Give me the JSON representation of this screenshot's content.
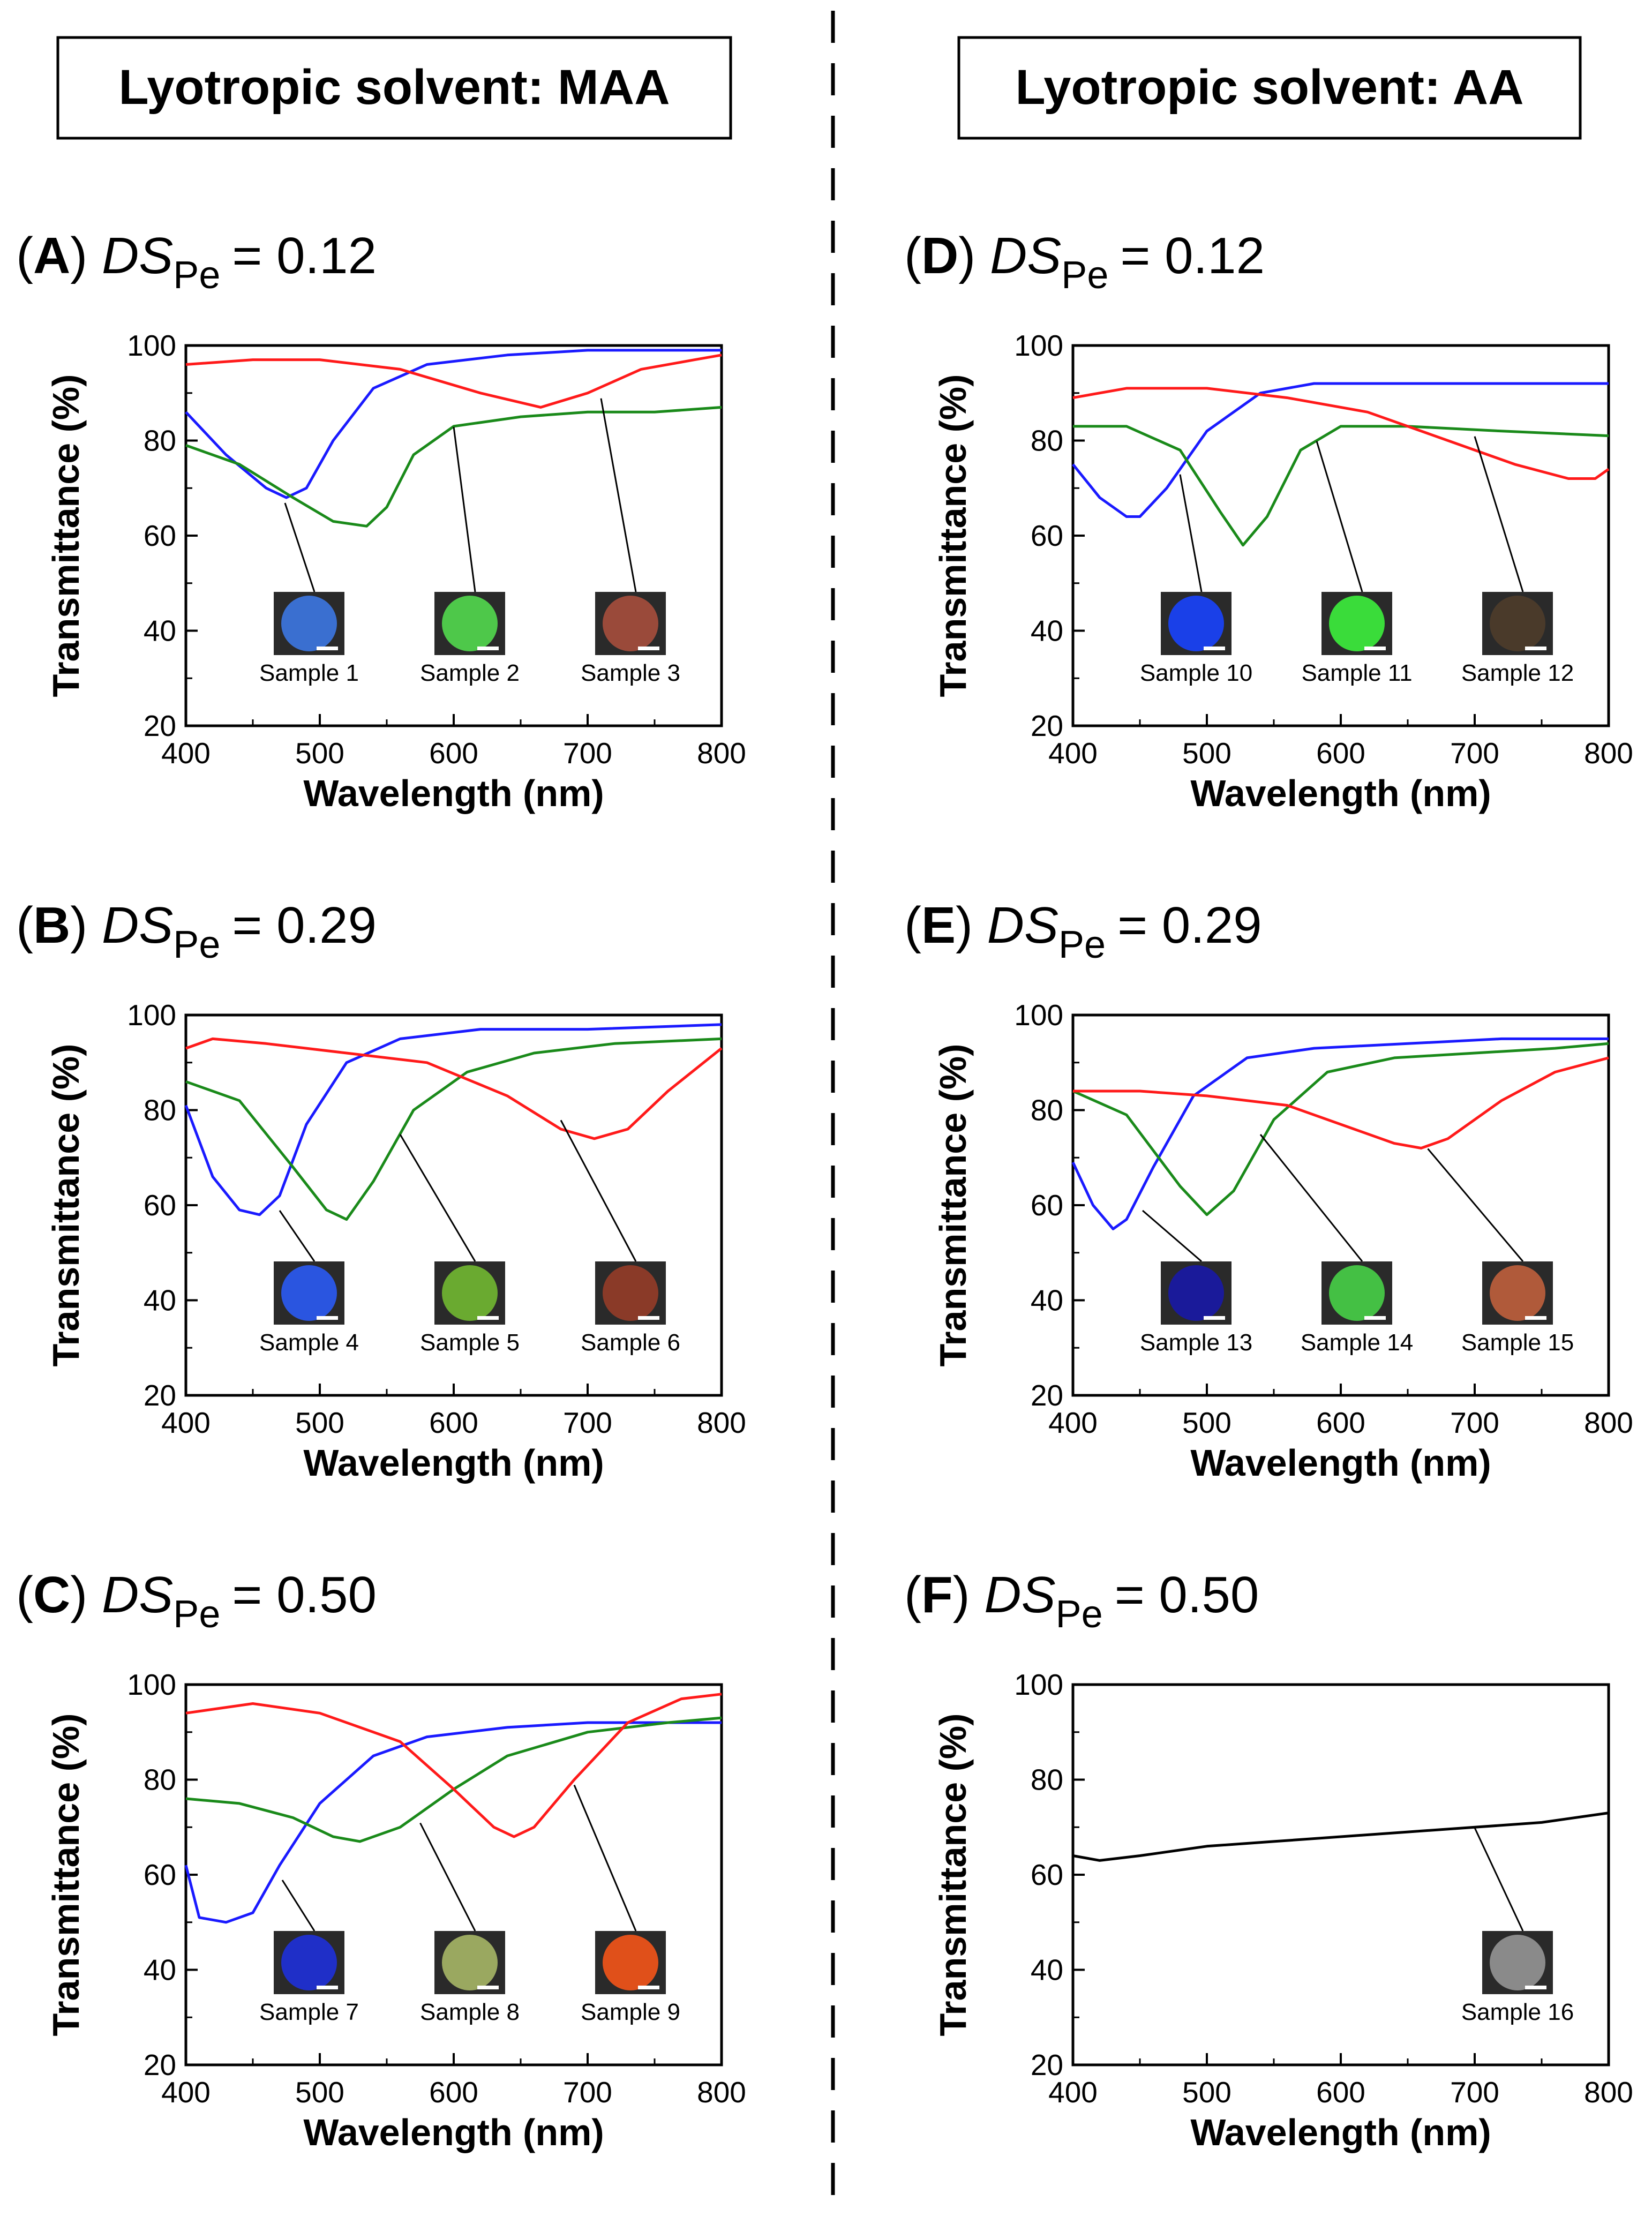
{
  "headers": {
    "left": "Lyotropic solvent: MAA",
    "right": "Lyotropic solvent: AA"
  },
  "colors": {
    "blue": "#1a1aff",
    "green": "#1a8a1a",
    "red": "#ff1a1a",
    "black": "#000000"
  },
  "chart_data": [
    {
      "type": "line",
      "panel": "A",
      "panel_letter": "A",
      "ds_symbol": "DS",
      "ds_subscript": "Pe",
      "ds_value": "= 0.12",
      "xlabel": "Wavelength (nm)",
      "ylabel": "Transmittance (%)",
      "xlim": [
        400,
        800
      ],
      "ylim": [
        20,
        100
      ],
      "xticks": [
        400,
        500,
        600,
        700,
        800
      ],
      "yticks": [
        20,
        40,
        60,
        80,
        100
      ],
      "series": [
        {
          "name": "Sample 1",
          "color": "blue",
          "x": [
            400,
            430,
            460,
            475,
            490,
            510,
            540,
            580,
            640,
            700,
            760,
            800
          ],
          "y": [
            86,
            77,
            70,
            68,
            70,
            80,
            91,
            96,
            98,
            99,
            99,
            99
          ]
        },
        {
          "name": "Sample 2",
          "color": "green",
          "x": [
            400,
            440,
            480,
            510,
            535,
            550,
            570,
            600,
            650,
            700,
            750,
            800
          ],
          "y": [
            79,
            75,
            68,
            63,
            62,
            66,
            77,
            83,
            85,
            86,
            86,
            87
          ]
        },
        {
          "name": "Sample 3",
          "color": "red",
          "x": [
            400,
            450,
            500,
            560,
            620,
            665,
            700,
            740,
            780,
            800
          ],
          "y": [
            96,
            97,
            97,
            95,
            90,
            87,
            90,
            95,
            97,
            98
          ]
        }
      ],
      "insets": [
        {
          "label": "Sample 1",
          "fill": "#3a6fd0",
          "target": [
            474,
            68
          ]
        },
        {
          "label": "Sample 2",
          "fill": "#4ec84a",
          "target": [
            600,
            84
          ]
        },
        {
          "label": "Sample 3",
          "fill": "#9a4a3a",
          "target": [
            710,
            90
          ]
        }
      ]
    },
    {
      "type": "line",
      "panel": "B",
      "panel_letter": "B",
      "ds_symbol": "DS",
      "ds_subscript": "Pe",
      "ds_value": "= 0.29",
      "xlabel": "Wavelength (nm)",
      "ylabel": "Transmittance (%)",
      "xlim": [
        400,
        800
      ],
      "ylim": [
        20,
        100
      ],
      "xticks": [
        400,
        500,
        600,
        700,
        800
      ],
      "yticks": [
        20,
        40,
        60,
        80,
        100
      ],
      "series": [
        {
          "name": "Sample 4",
          "color": "blue",
          "x": [
            400,
            420,
            440,
            455,
            470,
            490,
            520,
            560,
            620,
            700,
            800
          ],
          "y": [
            81,
            66,
            59,
            58,
            62,
            77,
            90,
            95,
            97,
            97,
            98
          ]
        },
        {
          "name": "Sample 5",
          "color": "green",
          "x": [
            400,
            440,
            480,
            505,
            520,
            540,
            570,
            610,
            660,
            720,
            800
          ],
          "y": [
            86,
            82,
            68,
            59,
            57,
            65,
            80,
            88,
            92,
            94,
            95
          ]
        },
        {
          "name": "Sample 6",
          "color": "red",
          "x": [
            400,
            420,
            460,
            520,
            580,
            640,
            680,
            705,
            730,
            760,
            800
          ],
          "y": [
            93,
            95,
            94,
            92,
            90,
            83,
            76,
            74,
            76,
            84,
            93
          ]
        }
      ],
      "insets": [
        {
          "label": "Sample 4",
          "fill": "#2a55e0",
          "target": [
            470,
            60
          ]
        },
        {
          "label": "Sample 5",
          "fill": "#6aaa30",
          "target": [
            560,
            76
          ]
        },
        {
          "label": "Sample 6",
          "fill": "#8a3a28",
          "target": [
            680,
            79
          ]
        }
      ]
    },
    {
      "type": "line",
      "panel": "C",
      "panel_letter": "C",
      "ds_symbol": "DS",
      "ds_subscript": "Pe",
      "ds_value": "= 0.50",
      "xlabel": "Wavelength (nm)",
      "ylabel": "Transmittance (%)",
      "xlim": [
        400,
        800
      ],
      "ylim": [
        20,
        100
      ],
      "xticks": [
        400,
        500,
        600,
        700,
        800
      ],
      "yticks": [
        20,
        40,
        60,
        80,
        100
      ],
      "series": [
        {
          "name": "Sample 7",
          "color": "blue",
          "x": [
            400,
            410,
            430,
            450,
            470,
            500,
            540,
            580,
            640,
            700,
            760,
            800
          ],
          "y": [
            62,
            51,
            50,
            52,
            62,
            75,
            85,
            89,
            91,
            92,
            92,
            92
          ]
        },
        {
          "name": "Sample 8",
          "color": "green",
          "x": [
            400,
            440,
            480,
            510,
            530,
            560,
            600,
            640,
            700,
            760,
            800
          ],
          "y": [
            76,
            75,
            72,
            68,
            67,
            70,
            78,
            85,
            90,
            92,
            93
          ]
        },
        {
          "name": "Sample 9",
          "color": "red",
          "x": [
            400,
            450,
            500,
            560,
            600,
            630,
            645,
            660,
            690,
            730,
            770,
            800
          ],
          "y": [
            94,
            96,
            94,
            88,
            78,
            70,
            68,
            70,
            80,
            92,
            97,
            98
          ]
        }
      ],
      "insets": [
        {
          "label": "Sample 7",
          "fill": "#1f2fc8",
          "target": [
            472,
            60
          ]
        },
        {
          "label": "Sample 8",
          "fill": "#9aa860",
          "target": [
            575,
            72
          ]
        },
        {
          "label": "Sample 9",
          "fill": "#e0501a",
          "target": [
            690,
            80
          ]
        }
      ]
    },
    {
      "type": "line",
      "panel": "D",
      "panel_letter": "D",
      "ds_symbol": "DS",
      "ds_subscript": "Pe",
      "ds_value": "= 0.12",
      "xlabel": "Wavelength (nm)",
      "ylabel": "Transmittance (%)",
      "xlim": [
        400,
        800
      ],
      "ylim": [
        20,
        100
      ],
      "xticks": [
        400,
        500,
        600,
        700,
        800
      ],
      "yticks": [
        20,
        40,
        60,
        80,
        100
      ],
      "series": [
        {
          "name": "Sample 10",
          "color": "blue",
          "x": [
            400,
            420,
            440,
            450,
            470,
            500,
            540,
            580,
            650,
            720,
            800
          ],
          "y": [
            75,
            68,
            64,
            64,
            70,
            82,
            90,
            92,
            92,
            92,
            92
          ]
        },
        {
          "name": "Sample 11",
          "color": "green",
          "x": [
            400,
            440,
            480,
            510,
            527,
            545,
            570,
            600,
            650,
            720,
            800
          ],
          "y": [
            83,
            83,
            78,
            65,
            58,
            64,
            78,
            83,
            83,
            82,
            81
          ]
        },
        {
          "name": "Sample 12",
          "color": "red",
          "x": [
            400,
            440,
            500,
            560,
            620,
            680,
            730,
            770,
            790,
            800
          ],
          "y": [
            89,
            91,
            91,
            89,
            86,
            80,
            75,
            72,
            72,
            74
          ]
        }
      ],
      "insets": [
        {
          "label": "Sample 10",
          "fill": "#1a40e8",
          "target": [
            480,
            74
          ]
        },
        {
          "label": "Sample 11",
          "fill": "#3adc3a",
          "target": [
            582,
            81
          ]
        },
        {
          "label": "Sample 12",
          "fill": "#4a3a2a",
          "target": [
            700,
            82
          ]
        }
      ]
    },
    {
      "type": "line",
      "panel": "E",
      "panel_letter": "E",
      "ds_symbol": "DS",
      "ds_subscript": "Pe",
      "ds_value": "= 0.29",
      "xlabel": "Wavelength (nm)",
      "ylabel": "Transmittance (%)",
      "xlim": [
        400,
        800
      ],
      "ylim": [
        20,
        100
      ],
      "xticks": [
        400,
        500,
        600,
        700,
        800
      ],
      "yticks": [
        20,
        40,
        60,
        80,
        100
      ],
      "series": [
        {
          "name": "Sample 13",
          "color": "blue",
          "x": [
            400,
            415,
            430,
            440,
            460,
            490,
            530,
            580,
            650,
            720,
            800
          ],
          "y": [
            69,
            60,
            55,
            57,
            68,
            83,
            91,
            93,
            94,
            95,
            95
          ]
        },
        {
          "name": "Sample 14",
          "color": "green",
          "x": [
            400,
            440,
            480,
            500,
            520,
            550,
            590,
            640,
            700,
            760,
            800
          ],
          "y": [
            84,
            79,
            64,
            58,
            63,
            78,
            88,
            91,
            92,
            93,
            94
          ]
        },
        {
          "name": "Sample 15",
          "color": "red",
          "x": [
            400,
            450,
            500,
            560,
            610,
            640,
            660,
            680,
            720,
            760,
            800
          ],
          "y": [
            84,
            84,
            83,
            81,
            76,
            73,
            72,
            74,
            82,
            88,
            91
          ]
        }
      ],
      "insets": [
        {
          "label": "Sample 13",
          "fill": "#1a1a9a",
          "target": [
            452,
            60
          ]
        },
        {
          "label": "Sample 14",
          "fill": "#44c044",
          "target": [
            540,
            76
          ]
        },
        {
          "label": "Sample 15",
          "fill": "#b05a3a",
          "target": [
            665,
            73
          ]
        }
      ]
    },
    {
      "type": "line",
      "panel": "F",
      "panel_letter": "F",
      "ds_symbol": "DS",
      "ds_subscript": "Pe",
      "ds_value": "= 0.50",
      "xlabel": "Wavelength (nm)",
      "ylabel": "Transmittance (%)",
      "xlim": [
        400,
        800
      ],
      "ylim": [
        20,
        100
      ],
      "xticks": [
        400,
        500,
        600,
        700,
        800
      ],
      "yticks": [
        20,
        40,
        60,
        80,
        100
      ],
      "series": [
        {
          "name": "Sample 16",
          "color": "black",
          "x": [
            400,
            420,
            450,
            500,
            550,
            600,
            650,
            700,
            750,
            800
          ],
          "y": [
            64,
            63,
            64,
            66,
            67,
            68,
            69,
            70,
            71,
            73
          ]
        }
      ],
      "insets": [
        {
          "label": "Sample 16",
          "fill": "#8a8a8a",
          "target": [
            700,
            71
          ]
        }
      ]
    }
  ]
}
